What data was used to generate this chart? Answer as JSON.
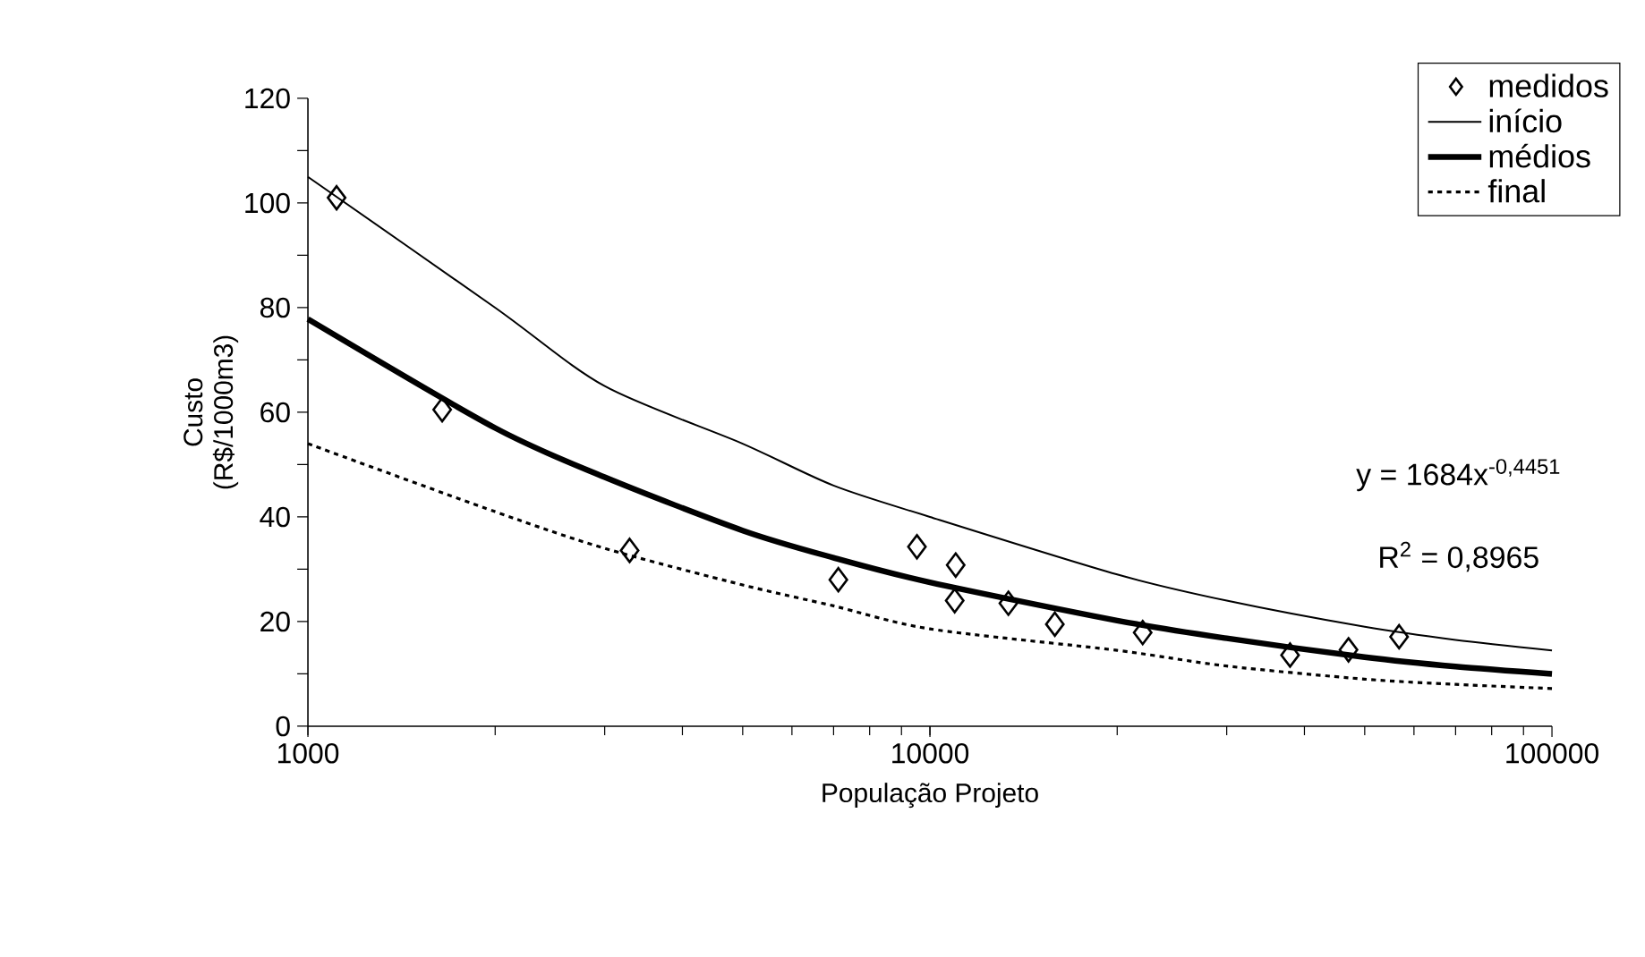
{
  "chart_data": {
    "type": "line",
    "xlabel": "População Projeto",
    "ylabel": "Custo (R$/1000m3)",
    "log": "x",
    "xlim": [
      1000,
      100000
    ],
    "xticks": [
      1000,
      10000,
      100000
    ],
    "ylim": [
      0,
      120
    ],
    "yticks": [
      0,
      {
        "value": 10,
        "label": null
      },
      20,
      {
        "value": 30,
        "label": null
      },
      40,
      {
        "value": 50,
        "label": null
      },
      60,
      {
        "value": 70,
        "label": null
      },
      80,
      {
        "value": 90,
        "label": null
      },
      100,
      {
        "value": 110,
        "label": null
      },
      120
    ],
    "legend": "top right",
    "grid": false,
    "annotations": [
      "y = 1684x$^{-0,4451}$",
      "R$^{2}$ = 0,8965"
    ],
    "series": [
      {
        "name": "medidos",
        "type": "scatter",
        "marker": "diamond",
        "color": "#000000",
        "x": [
          1112,
          1644,
          3290,
          7125,
          9530,
          11000,
          10960,
          13370,
          15880,
          21980,
          37930,
          47090,
          56790
        ],
        "values": [
          101,
          60.5,
          33.6,
          28,
          34.3,
          30.8,
          24,
          23.5,
          19.5,
          17.9,
          13.6,
          14.6,
          17.1
        ]
      },
      {
        "name": "início",
        "marker": "none",
        "line_style": "solid",
        "color": "#000000",
        "x": [
          1000,
          2000,
          3000,
          5000,
          7000,
          10000,
          20000,
          30000,
          50000,
          70000,
          100000
        ],
        "values": [
          105,
          80,
          65,
          54,
          46,
          40,
          29,
          24,
          19,
          16.5,
          14.5
        ]
      },
      {
        "name": "médios",
        "marker": "none",
        "line_style": "solid",
        "color": "#000000",
        "x": [
          1000,
          2000,
          3000,
          5000,
          7000,
          10000,
          20000,
          30000,
          50000,
          70000,
          100000
        ],
        "values": [
          77.8,
          57,
          47.6,
          37.4,
          32.2,
          27.5,
          20.2,
          16.8,
          13.2,
          11.4,
          10
        ]
      },
      {
        "name": "final",
        "marker": "none",
        "line_style": "dotted",
        "color": "#000000",
        "x": [
          1000,
          2000,
          3000,
          5000,
          7000,
          10000,
          20000,
          30000,
          50000,
          70000,
          100000
        ],
        "values": [
          54,
          41,
          34,
          27,
          23,
          18.6,
          14.5,
          11.5,
          9,
          8,
          7.2
        ]
      }
    ]
  }
}
